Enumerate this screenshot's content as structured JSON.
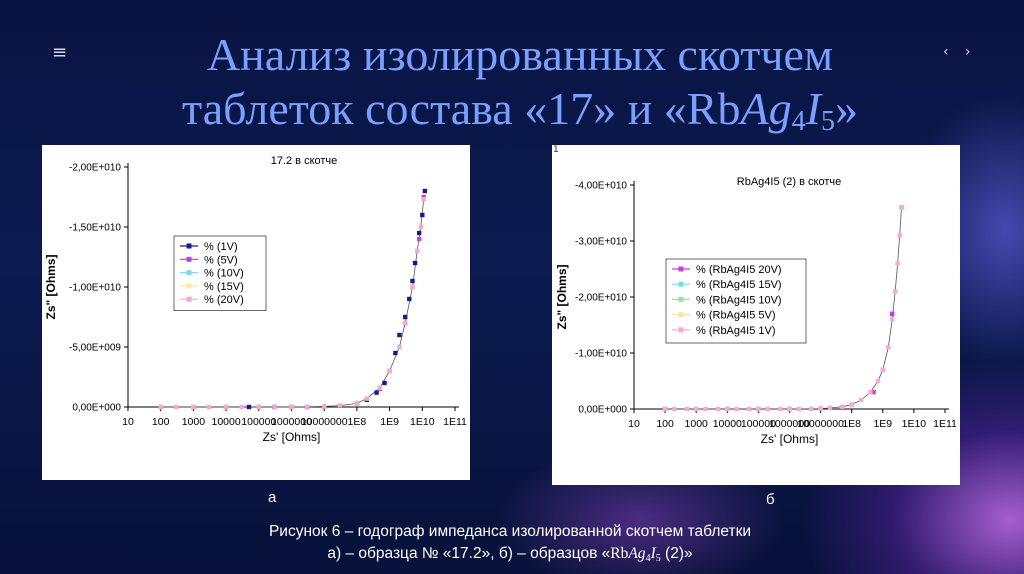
{
  "slide": {
    "menu_icon": "≡",
    "nav_arrows": "‹ ›",
    "title_line1": "Анализ изолированных скотчем",
    "title_line2_prefix": "таблеток состава «17» и «Rb",
    "title_line2_ag": "Ag",
    "title_line2_sub4": "4",
    "title_line2_i": "I",
    "title_line2_sub5": "5",
    "title_line2_suffix": "»",
    "label_a": "а",
    "label_b": "б",
    "caption_line1": "Рисунок  6 – годограф импеданса изолированной скотчем таблетки",
    "caption_line2_prefix": "а) – образца № «17.2», б) – образцов «",
    "caption_rb": "Rb",
    "caption_ag": "Ag",
    "caption_sub4": "4",
    "caption_i": "I",
    "caption_sub5": "5",
    "caption_line2_suffix": " (2)»",
    "panel_b_mark": "1"
  },
  "chart_data": [
    {
      "type": "scatter",
      "title": "17.2 в скотче",
      "xlabel": "Zs' [Ohms]",
      "ylabel": "Zs\" [Ohms]",
      "x_scale": "log",
      "xlim": [
        10,
        100000000000.0
      ],
      "ylim": [
        0,
        -20000000000.0
      ],
      "x_ticks": [
        "10",
        "100",
        "1000",
        "10000",
        "100000",
        "1000000",
        "10000000",
        "1E8",
        "1E9",
        "1E10",
        "1E11"
      ],
      "y_ticks": [
        {
          "value": 0,
          "label": "0,00E+000"
        },
        {
          "value": -5000000000.0,
          "label": "-5,00E+009"
        },
        {
          "value": -10000000000.0,
          "label": "-1,00E+010"
        },
        {
          "value": -15000000000.0,
          "label": "-1,50E+010"
        },
        {
          "value": -20000000000.0,
          "label": "-2,00E+010"
        }
      ],
      "legend_position": "left-middle",
      "series": [
        {
          "name": "% (1V)",
          "color": "#1a1a8c",
          "marker": "square",
          "x": [
            100,
            1000,
            10000,
            50000,
            100000,
            300000,
            1000000,
            3000000,
            10000000.0,
            30000000.0,
            100000000.0,
            200000000.0,
            400000000.0,
            700000000.0,
            1000000000.0,
            1500000000.0,
            2000000000.0,
            3000000000.0,
            4000000000.0,
            5000000000.0,
            6000000000.0,
            8000000000.0,
            10000000000.0,
            12000000000.0
          ],
          "y": [
            0,
            0,
            0,
            0,
            0,
            0,
            0,
            0,
            -50000000.0,
            -100000000.0,
            -300000000.0,
            -600000000.0,
            -1200000000.0,
            -2000000000.0,
            -3000000000.0,
            -4500000000.0,
            -6000000000.0,
            -7500000000.0,
            -9000000000.0,
            -10500000000.0,
            -12000000000.0,
            -14500000000.0,
            -16000000000.0,
            -18000000000.0
          ]
        },
        {
          "name": "% (5V)",
          "color": "#c040e0",
          "marker": "square",
          "x": [
            100,
            1000,
            10000,
            100000,
            1000000,
            10000000.0,
            100000000.0,
            500000000.0,
            1000000000.0,
            3000000000.0,
            5000000000.0,
            8000000000.0,
            11000000000.0
          ],
          "y": [
            0,
            0,
            0,
            0,
            0,
            -50000000.0,
            -300000000.0,
            -1500000000.0,
            -3000000000.0,
            -7000000000.0,
            -10000000000.0,
            -14000000000.0,
            -17500000000.0
          ]
        },
        {
          "name": "% (10V)",
          "color": "#80d8f0",
          "marker": "square",
          "x": [
            100,
            1000,
            10000,
            100000,
            1000000,
            10000000.0,
            100000000.0,
            1000000000.0,
            5000000000.0,
            11000000000.0
          ],
          "y": [
            0,
            0,
            0,
            0,
            0,
            -50000000.0,
            -300000000.0,
            -3000000000.0,
            -10000000000.0,
            -17300000000.0
          ]
        },
        {
          "name": "% (15V)",
          "color": "#f8e8a0",
          "marker": "square",
          "x": [
            100,
            1000,
            10000,
            100000,
            1000000,
            10000000.0,
            100000000.0,
            1000000000.0,
            5000000000.0,
            11000000000.0
          ],
          "y": [
            0,
            0,
            0,
            0,
            0,
            -50000000.0,
            -300000000.0,
            -3000000000.0,
            -10000000000.0,
            -17300000000.0
          ]
        },
        {
          "name": "% (20V)",
          "color": "#f8a8c8",
          "marker": "square",
          "x": [
            100,
            300,
            1000,
            3000,
            10000,
            30000,
            100000,
            300000,
            1000000,
            3000000,
            10000000.0,
            30000000.0,
            100000000.0,
            200000000.0,
            500000000.0,
            1000000000.0,
            2000000000.0,
            3000000000.0,
            5000000000.0,
            7000000000.0,
            9000000000.0,
            11000000000.0
          ],
          "y": [
            0,
            0,
            0,
            0,
            0,
            0,
            0,
            0,
            0,
            -20000000.0,
            -50000000.0,
            -120000000.0,
            -300000000.0,
            -700000000.0,
            -1600000000.0,
            -3000000000.0,
            -5000000000.0,
            -7000000000.0,
            -10000000000.0,
            -13000000000.0,
            -15000000000.0,
            -17300000000.0
          ]
        }
      ]
    },
    {
      "type": "scatter",
      "title": "RbAg4I5 (2) в скотче",
      "xlabel": "Zs' [Ohms]",
      "ylabel": "Zs\" [Ohms]",
      "x_scale": "log",
      "xlim": [
        10,
        100000000000.0
      ],
      "ylim": [
        0,
        -40000000000.0
      ],
      "x_ticks": [
        "10",
        "100",
        "1000",
        "10000",
        "100000",
        "1000000",
        "10000000",
        "1E8",
        "1E9",
        "1E10",
        "1E11"
      ],
      "y_ticks": [
        {
          "value": 0,
          "label": "0,00E+000"
        },
        {
          "value": -10000000000.0,
          "label": "-1,00E+010"
        },
        {
          "value": -20000000000.0,
          "label": "-2,00E+010"
        },
        {
          "value": -30000000000.0,
          "label": "-3,00E+010"
        },
        {
          "value": -40000000000.0,
          "label": "-4,00E+010"
        }
      ],
      "legend_position": "left-middle",
      "series": [
        {
          "name": "% (RbAg4I5 20V)",
          "color": "#c040e0",
          "marker": "square",
          "x": [
            100,
            1000,
            10000,
            100000,
            1000000,
            10000000.0,
            100000000.0,
            500000000.0,
            1000000000.0,
            2000000000.0,
            4000000000.0
          ],
          "y": [
            0,
            0,
            0,
            0,
            0,
            -100000000.0,
            -700000000.0,
            -3000000000.0,
            -7000000000.0,
            -17000000000.0,
            -36000000000.0
          ]
        },
        {
          "name": "% (RbAg4I5 15V)",
          "color": "#80d8f0",
          "marker": "square",
          "x": [
            100,
            1000,
            10000,
            100000,
            1000000,
            10000000.0,
            100000000.0,
            1000000000.0,
            4000000000.0
          ],
          "y": [
            0,
            0,
            0,
            0,
            0,
            -100000000.0,
            -700000000.0,
            -7000000000.0,
            -36000000000.0
          ]
        },
        {
          "name": "% (RbAg4I5 10V)",
          "color": "#90e890",
          "marker": "square",
          "x": [
            100,
            1000,
            10000,
            100000,
            1000000,
            10000000.0,
            100000000.0,
            1000000000.0,
            4000000000.0
          ],
          "y": [
            0,
            0,
            0,
            0,
            0,
            -100000000.0,
            -700000000.0,
            -7000000000.0,
            -36000000000.0
          ]
        },
        {
          "name": "% (RbAg4I5 5V)",
          "color": "#f8e0b0",
          "marker": "square",
          "x": [
            100,
            1000,
            10000,
            100000,
            1000000,
            10000000.0,
            100000000.0,
            1000000000.0,
            4000000000.0
          ],
          "y": [
            0,
            0,
            0,
            0,
            0,
            -100000000.0,
            -700000000.0,
            -7000000000.0,
            -36000000000.0
          ]
        },
        {
          "name": "% (RbAg4I5 1V)",
          "color": "#f8a8d8",
          "marker": "square",
          "x": [
            100,
            200,
            500,
            1000,
            2000,
            5000,
            10000,
            20000,
            50000,
            100000,
            200000,
            500000,
            1000000,
            2000000,
            5000000,
            10000000.0,
            20000000.0,
            50000000.0,
            100000000.0,
            200000000.0,
            400000000.0,
            700000000.0,
            1000000000.0,
            1500000000.0,
            2000000000.0,
            2500000000.0,
            3000000000.0,
            3500000000.0,
            4000000000.0
          ],
          "y": [
            0,
            0,
            0,
            0,
            0,
            0,
            0,
            0,
            0,
            0,
            0,
            0,
            0,
            -10000000.0,
            -30000000.0,
            -80000000.0,
            -200000000.0,
            -400000000.0,
            -800000000.0,
            -1600000000.0,
            -3000000000.0,
            -5000000000.0,
            -7000000000.0,
            -11000000000.0,
            -16000000000.0,
            -21000000000.0,
            -26000000000.0,
            -31000000000.0,
            -36000000000.0
          ]
        }
      ]
    }
  ]
}
